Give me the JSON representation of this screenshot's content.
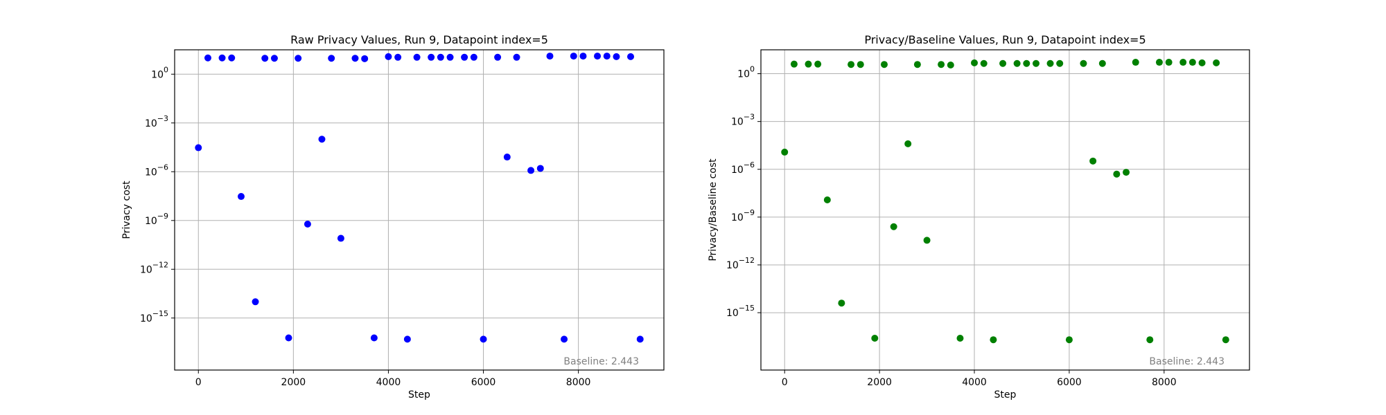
{
  "chart_data": [
    {
      "type": "scatter",
      "title": "Raw Privacy Values, Run 9, Datapoint index=5",
      "xlabel": "Step",
      "ylabel": "Privacy cost",
      "yscale": "log",
      "xlim": [
        -500,
        9800
      ],
      "ylim_exp": [
        -18.2,
        1.5
      ],
      "xticks": [
        0,
        2000,
        4000,
        6000,
        8000
      ],
      "xtick_labels": [
        "0",
        "2000",
        "4000",
        "6000",
        "8000"
      ],
      "yticks_exp": [
        0,
        -3,
        -6,
        -9,
        -12,
        -15
      ],
      "ytick_labels": [
        [
          "10",
          "0"
        ],
        [
          "10",
          "−3"
        ],
        [
          "10",
          "−6"
        ],
        [
          "10",
          "−9"
        ],
        [
          "10",
          "−12"
        ],
        [
          "10",
          "−15"
        ]
      ],
      "grid": true,
      "color": "#0000ff",
      "annotation": "Baseline: 2.443",
      "points": [
        {
          "x": 0,
          "y": 3e-05
        },
        {
          "x": 200,
          "y": 10
        },
        {
          "x": 500,
          "y": 10
        },
        {
          "x": 700,
          "y": 10
        },
        {
          "x": 900,
          "y": 3e-08
        },
        {
          "x": 1200,
          "y": 1e-14
        },
        {
          "x": 1400,
          "y": 9.5
        },
        {
          "x": 1600,
          "y": 9.5
        },
        {
          "x": 1900,
          "y": 6e-17
        },
        {
          "x": 2100,
          "y": 9.5
        },
        {
          "x": 2300,
          "y": 6e-10
        },
        {
          "x": 2600,
          "y": 0.0001
        },
        {
          "x": 2800,
          "y": 9.5
        },
        {
          "x": 3000,
          "y": 8e-11
        },
        {
          "x": 3300,
          "y": 9.5
        },
        {
          "x": 3500,
          "y": 9
        },
        {
          "x": 3700,
          "y": 6e-17
        },
        {
          "x": 4000,
          "y": 12
        },
        {
          "x": 4200,
          "y": 11
        },
        {
          "x": 4400,
          "y": 5e-17
        },
        {
          "x": 4600,
          "y": 11
        },
        {
          "x": 4900,
          "y": 11
        },
        {
          "x": 5100,
          "y": 11
        },
        {
          "x": 5300,
          "y": 11
        },
        {
          "x": 5600,
          "y": 11
        },
        {
          "x": 5800,
          "y": 11
        },
        {
          "x": 6000,
          "y": 5e-17
        },
        {
          "x": 6300,
          "y": 11
        },
        {
          "x": 6500,
          "y": 8e-06
        },
        {
          "x": 6700,
          "y": 11
        },
        {
          "x": 7000,
          "y": 1.2e-06
        },
        {
          "x": 7200,
          "y": 1.6e-06
        },
        {
          "x": 7400,
          "y": 13
        },
        {
          "x": 7700,
          "y": 5e-17
        },
        {
          "x": 7900,
          "y": 13
        },
        {
          "x": 8100,
          "y": 13
        },
        {
          "x": 8400,
          "y": 13
        },
        {
          "x": 8600,
          "y": 13
        },
        {
          "x": 8800,
          "y": 12
        },
        {
          "x": 9100,
          "y": 12
        },
        {
          "x": 9300,
          "y": 5e-17
        }
      ]
    },
    {
      "type": "scatter",
      "title": "Privacy/Baseline Values, Run 9, Datapoint index=5",
      "xlabel": "Step",
      "ylabel": "Privacy/Baseline cost",
      "yscale": "log",
      "xlim": [
        -500,
        9800
      ],
      "ylim_exp": [
        -18.6,
        1.5
      ],
      "xticks": [
        0,
        2000,
        4000,
        6000,
        8000
      ],
      "xtick_labels": [
        "0",
        "2000",
        "4000",
        "6000",
        "8000"
      ],
      "yticks_exp": [
        0,
        -3,
        -6,
        -9,
        -12,
        -15
      ],
      "ytick_labels": [
        [
          "10",
          "0"
        ],
        [
          "10",
          "−3"
        ],
        [
          "10",
          "−6"
        ],
        [
          "10",
          "−9"
        ],
        [
          "10",
          "−12"
        ],
        [
          "10",
          "−15"
        ]
      ],
      "grid": true,
      "color": "#008000",
      "annotation": "Baseline: 2.443",
      "points": [
        {
          "x": 0,
          "y": 1.2e-05
        },
        {
          "x": 200,
          "y": 4
        },
        {
          "x": 500,
          "y": 4
        },
        {
          "x": 700,
          "y": 4
        },
        {
          "x": 900,
          "y": 1.2e-08
        },
        {
          "x": 1200,
          "y": 4e-15
        },
        {
          "x": 1400,
          "y": 3.8
        },
        {
          "x": 1600,
          "y": 3.8
        },
        {
          "x": 1900,
          "y": 2.5e-17
        },
        {
          "x": 2100,
          "y": 3.8
        },
        {
          "x": 2300,
          "y": 2.5e-10
        },
        {
          "x": 2600,
          "y": 4e-05
        },
        {
          "x": 2800,
          "y": 3.8
        },
        {
          "x": 3000,
          "y": 3.5e-11
        },
        {
          "x": 3300,
          "y": 3.8
        },
        {
          "x": 3500,
          "y": 3.5
        },
        {
          "x": 3700,
          "y": 2.5e-17
        },
        {
          "x": 4000,
          "y": 4.8
        },
        {
          "x": 4200,
          "y": 4.4
        },
        {
          "x": 4400,
          "y": 2e-17
        },
        {
          "x": 4600,
          "y": 4.4
        },
        {
          "x": 4900,
          "y": 4.4
        },
        {
          "x": 5100,
          "y": 4.4
        },
        {
          "x": 5300,
          "y": 4.4
        },
        {
          "x": 5600,
          "y": 4.4
        },
        {
          "x": 5800,
          "y": 4.4
        },
        {
          "x": 6000,
          "y": 2e-17
        },
        {
          "x": 6300,
          "y": 4.4
        },
        {
          "x": 6500,
          "y": 3.3e-06
        },
        {
          "x": 6700,
          "y": 4.4
        },
        {
          "x": 7000,
          "y": 5e-07
        },
        {
          "x": 7200,
          "y": 6.5e-07
        },
        {
          "x": 7400,
          "y": 5.2
        },
        {
          "x": 7700,
          "y": 2e-17
        },
        {
          "x": 7900,
          "y": 5.2
        },
        {
          "x": 8100,
          "y": 5.2
        },
        {
          "x": 8400,
          "y": 5.2
        },
        {
          "x": 8600,
          "y": 5.2
        },
        {
          "x": 8800,
          "y": 4.8
        },
        {
          "x": 9100,
          "y": 4.8
        },
        {
          "x": 9300,
          "y": 2e-17
        }
      ]
    }
  ]
}
